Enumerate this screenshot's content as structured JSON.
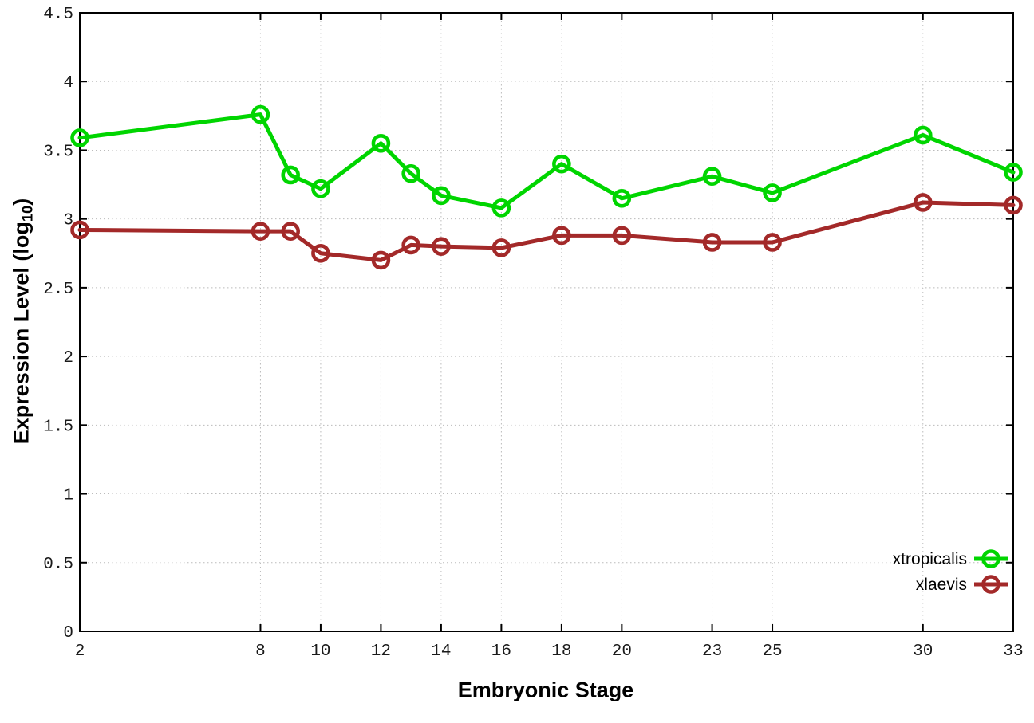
{
  "chart_data": {
    "type": "line",
    "title": "",
    "xlabel": "Embryonic Stage",
    "ylabel": "Expression Level (log10)",
    "ylabel_parts": {
      "main": "Expression Level (log",
      "sub": "10",
      "close": ")"
    },
    "x": [
      2,
      8,
      9,
      10,
      12,
      13,
      14,
      16,
      18,
      20,
      23,
      25,
      30,
      33
    ],
    "xticks": [
      2,
      8,
      10,
      12,
      14,
      16,
      18,
      20,
      23,
      25,
      30,
      33
    ],
    "yticks": [
      0,
      0.5,
      1,
      1.5,
      2,
      2.5,
      3,
      3.5,
      4,
      4.5
    ],
    "xlim": [
      2,
      33
    ],
    "ylim": [
      0,
      4.5
    ],
    "grid": true,
    "legend_position": "bottom-right",
    "series": [
      {
        "name": "xtropicalis",
        "color": "#00d500",
        "values": [
          3.59,
          3.76,
          3.32,
          3.22,
          3.55,
          3.33,
          3.17,
          3.08,
          3.4,
          3.15,
          3.31,
          3.19,
          3.61,
          3.34
        ]
      },
      {
        "name": "xlaevis",
        "color": "#a32929",
        "values": [
          2.92,
          2.91,
          2.91,
          2.75,
          2.7,
          2.81,
          2.8,
          2.79,
          2.88,
          2.88,
          2.83,
          2.83,
          3.12,
          3.1
        ]
      }
    ],
    "axis_color": "#000000",
    "grid_color": "#bbbbbb",
    "tick_label_color": "#1a1a1a"
  }
}
